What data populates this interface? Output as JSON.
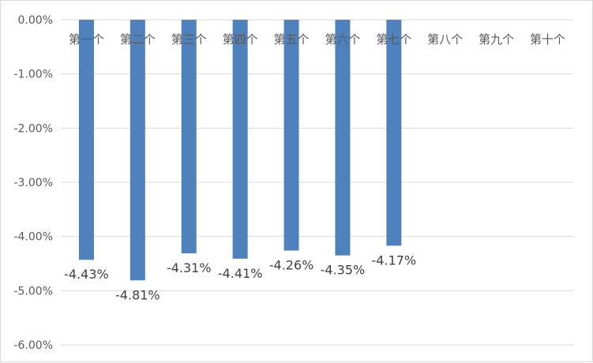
{
  "chart_data": {
    "type": "bar",
    "categories": [
      "第一个",
      "第二个",
      "第三个",
      "第四个",
      "第五个",
      "第六个",
      "第七个",
      "第八个",
      "第九个",
      "第十个"
    ],
    "values": [
      -4.43,
      -4.81,
      -4.31,
      -4.41,
      -4.26,
      -4.35,
      -4.17,
      null,
      null,
      null
    ],
    "value_labels": [
      "-4.43%",
      "-4.81%",
      "-4.31%",
      "-4.41%",
      "-4.26%",
      "-4.35%",
      "-4.17%",
      null,
      null,
      null
    ],
    "y_ticks": [
      0,
      -1,
      -2,
      -3,
      -4,
      -5,
      -6
    ],
    "y_tick_labels": [
      "0.00%",
      "-1.00%",
      "-2.00%",
      "-3.00%",
      "-4.00%",
      "-5.00%",
      "-6.00%"
    ],
    "ylim": [
      -6,
      0
    ],
    "grid": true,
    "legend": "none",
    "bar_color": "#4f81bd",
    "grid_color": "#d9d9d9"
  }
}
